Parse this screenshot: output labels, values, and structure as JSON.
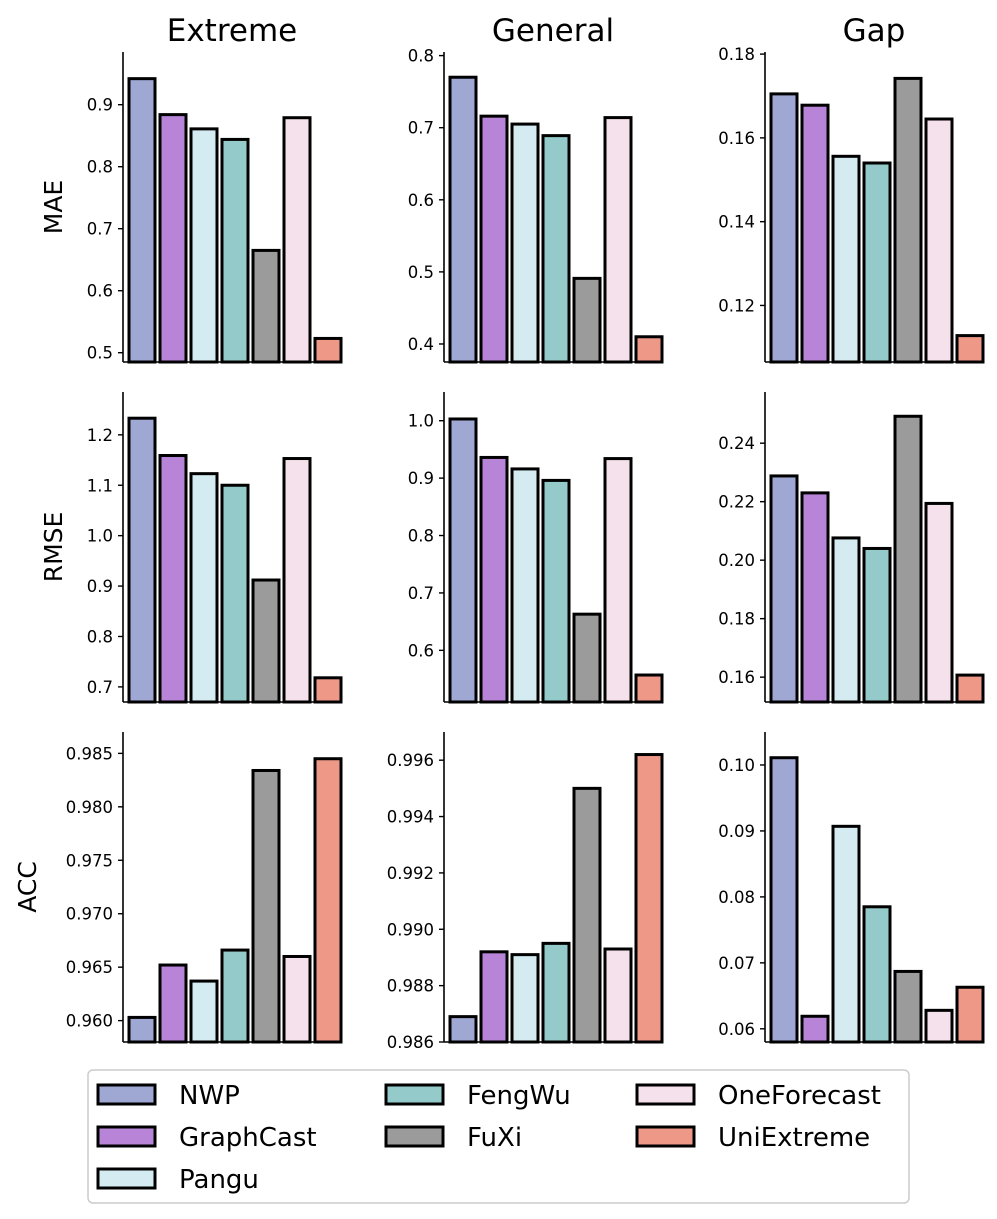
{
  "chart_data": {
    "type": "bar",
    "layout": "3x3 grid of bar charts",
    "columns": [
      "Extreme",
      "General",
      "Gap"
    ],
    "rows": [
      "MAE",
      "RMSE",
      "ACC"
    ],
    "models": [
      "NWP",
      "GraphCast",
      "Pangu",
      "FengWu",
      "FuXi",
      "OneForecast",
      "UniExtreme"
    ],
    "colors": {
      "NWP": "#9fa8d3",
      "GraphCast": "#b784d8",
      "Pangu": "#d3ebf1",
      "FengWu": "#94cbca",
      "FuXi": "#9b9b9b",
      "OneForecast": "#f5e1eb",
      "UniExtreme": "#ee9888"
    },
    "legend": {
      "placement": "bottom",
      "columns": [
        [
          "NWP",
          "GraphCast",
          "Pangu"
        ],
        [
          "FengWu",
          "FuXi"
        ],
        [
          "OneForecast",
          "UniExtreme"
        ]
      ]
    },
    "panels": [
      {
        "row": "MAE",
        "column": "Extreme",
        "ylim": [
          0.485,
          0.985
        ],
        "ticks": [
          0.5,
          0.6,
          0.7,
          0.8,
          0.9
        ],
        "tick_labels": [
          "0.5",
          "0.6",
          "0.7",
          "0.8",
          "0.9"
        ],
        "values": [
          0.942,
          0.884,
          0.861,
          0.844,
          0.665,
          0.879,
          0.523
        ]
      },
      {
        "row": "MAE",
        "column": "General",
        "ylim": [
          0.375,
          0.805
        ],
        "ticks": [
          0.4,
          0.5,
          0.6,
          0.7,
          0.8
        ],
        "tick_labels": [
          "0.4",
          "0.5",
          "0.6",
          "0.7",
          "0.8"
        ],
        "values": [
          0.77,
          0.716,
          0.705,
          0.689,
          0.491,
          0.714,
          0.41
        ]
      },
      {
        "row": "MAE",
        "column": "Gap",
        "ylim": [
          0.1065,
          0.1805
        ],
        "ticks": [
          0.12,
          0.14,
          0.16,
          0.18
        ],
        "tick_labels": [
          "0.12",
          "0.14",
          "0.16",
          "0.18"
        ],
        "values": [
          0.1705,
          0.1678,
          0.1556,
          0.154,
          0.1742,
          0.1645,
          0.1128
        ]
      },
      {
        "row": "RMSE",
        "column": "Extreme",
        "ylim": [
          0.67,
          1.285
        ],
        "ticks": [
          0.7,
          0.8,
          0.9,
          1.0,
          1.1,
          1.2
        ],
        "tick_labels": [
          "0.7",
          "0.8",
          "0.9",
          "1.0",
          "1.1",
          "1.2"
        ],
        "values": [
          1.233,
          1.159,
          1.123,
          1.1,
          0.912,
          1.153,
          0.718
        ]
      },
      {
        "row": "RMSE",
        "column": "General",
        "ylim": [
          0.51,
          1.05
        ],
        "ticks": [
          0.6,
          0.7,
          0.8,
          0.9,
          1.0
        ],
        "tick_labels": [
          "0.6",
          "0.7",
          "0.8",
          "0.9",
          "1.0"
        ],
        "values": [
          1.003,
          0.936,
          0.916,
          0.896,
          0.663,
          0.934,
          0.557
        ]
      },
      {
        "row": "RMSE",
        "column": "Gap",
        "ylim": [
          0.1515,
          0.2575
        ],
        "ticks": [
          0.16,
          0.18,
          0.2,
          0.22,
          0.24
        ],
        "tick_labels": [
          "0.16",
          "0.18",
          "0.20",
          "0.22",
          "0.24"
        ],
        "values": [
          0.2288,
          0.223,
          0.2076,
          0.204,
          0.2492,
          0.2194,
          0.1607
        ]
      },
      {
        "row": "ACC",
        "column": "Extreme",
        "ylim": [
          0.958,
          0.987
        ],
        "ticks": [
          0.96,
          0.965,
          0.97,
          0.975,
          0.98,
          0.985
        ],
        "tick_labels": [
          "0.960",
          "0.965",
          "0.970",
          "0.975",
          "0.980",
          "0.985"
        ],
        "values": [
          0.9603,
          0.9652,
          0.9637,
          0.9666,
          0.9834,
          0.966,
          0.9845
        ]
      },
      {
        "row": "ACC",
        "column": "General",
        "ylim": [
          0.986,
          0.997
        ],
        "ticks": [
          0.986,
          0.988,
          0.99,
          0.992,
          0.994,
          0.996
        ],
        "tick_labels": [
          "0.986",
          "0.988",
          "0.990",
          "0.992",
          "0.994",
          "0.996"
        ],
        "values": [
          0.9869,
          0.9892,
          0.9891,
          0.9895,
          0.995,
          0.9893,
          0.9962
        ]
      },
      {
        "row": "ACC",
        "column": "Gap",
        "ylim": [
          0.058,
          0.105
        ],
        "ticks": [
          0.06,
          0.07,
          0.08,
          0.09,
          0.1
        ],
        "tick_labels": [
          "0.06",
          "0.07",
          "0.08",
          "0.09",
          "0.10"
        ],
        "values": [
          0.1011,
          0.0619,
          0.0907,
          0.0785,
          0.0687,
          0.0628,
          0.0663
        ]
      }
    ]
  }
}
